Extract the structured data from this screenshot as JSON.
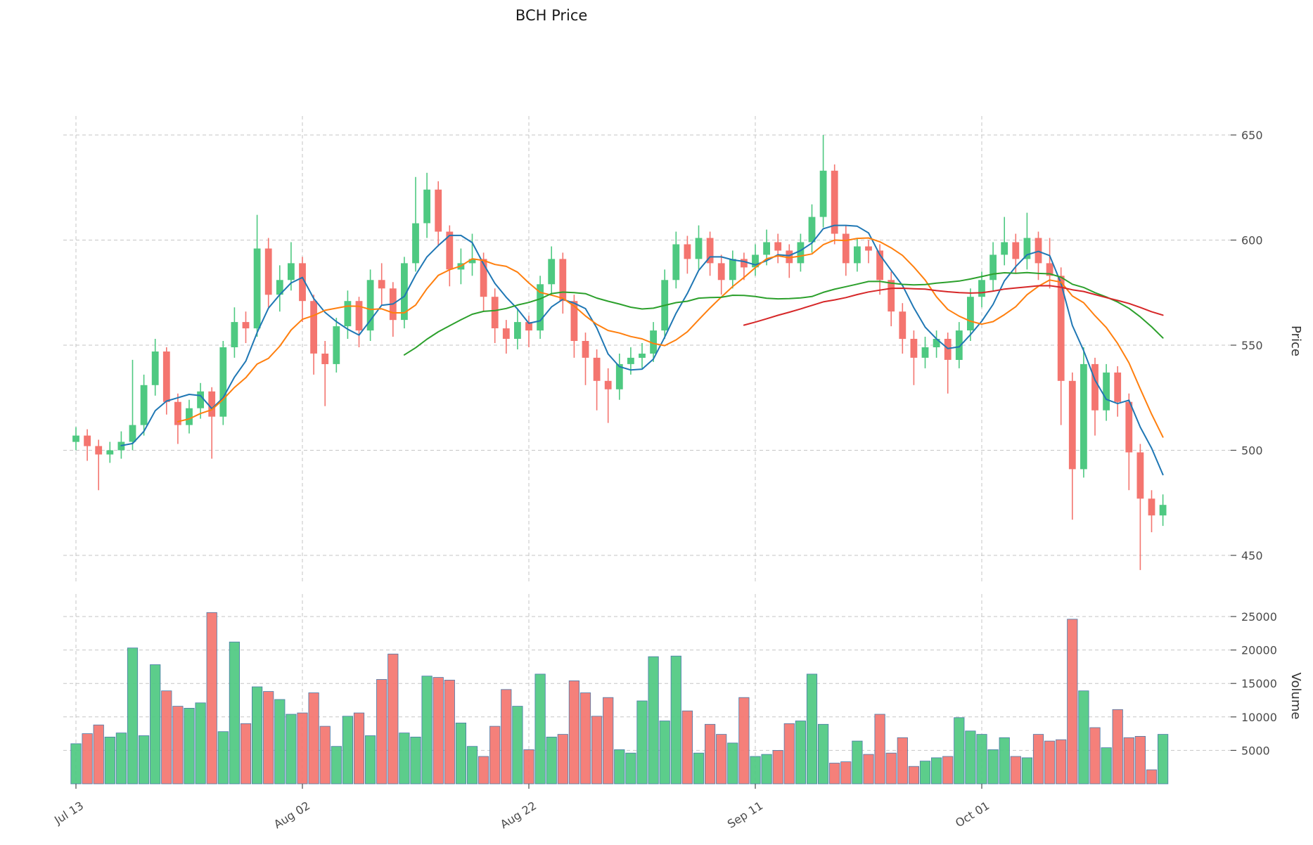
{
  "chart_data": {
    "type": "candlestick",
    "title": "BCH Price",
    "ylabel": "Price",
    "ylabel_volume": "Volume",
    "grid": true,
    "price_ticks": [
      450,
      500,
      550,
      600,
      650
    ],
    "price_range": [
      440,
      660
    ],
    "volume_ticks": [
      5000,
      10000,
      15000,
      20000,
      25000
    ],
    "volume_range": [
      0,
      27000
    ],
    "x_ticks": [
      {
        "index": 0,
        "label": "Jul 13"
      },
      {
        "index": 20,
        "label": "Aug 02"
      },
      {
        "index": 40,
        "label": "Aug 22"
      },
      {
        "index": 60,
        "label": "Sep 11"
      },
      {
        "index": 80,
        "label": "Oct 01"
      }
    ],
    "moving_averages": {
      "windows": [
        5,
        10,
        30,
        60
      ],
      "colors": [
        "#1f77b4",
        "#ff7f0e",
        "#2ca02c",
        "#d62728"
      ]
    },
    "colors": {
      "up": "#4ec981",
      "down": "#f4756f",
      "volume_edge": "#4a7aaa",
      "grid": "#c6c6c6",
      "text": "#4a4a4a"
    },
    "columns": [
      "date",
      "open",
      "high",
      "low",
      "close",
      "volume"
    ],
    "ohlcv": [
      [
        "Jul 13",
        504,
        511,
        500,
        507,
        6000
      ],
      [
        "Jul 14",
        507,
        510,
        495,
        502,
        7500
      ],
      [
        "Jul 15",
        502,
        505,
        481,
        498,
        8800
      ],
      [
        "Jul 16",
        498,
        504,
        494,
        500,
        7000
      ],
      [
        "Jul 17",
        500,
        509,
        496,
        504,
        7600
      ],
      [
        "Jul 18",
        504,
        543,
        500,
        512,
        20300
      ],
      [
        "Jul 19",
        512,
        536,
        507,
        531,
        7200
      ],
      [
        "Jul 20",
        531,
        553,
        526,
        547,
        17800
      ],
      [
        "Jul 21",
        547,
        549,
        517,
        523,
        13900
      ],
      [
        "Jul 22",
        523,
        527,
        503,
        512,
        11600
      ],
      [
        "Jul 23",
        512,
        524,
        508,
        520,
        11300
      ],
      [
        "Jul 24",
        520,
        532,
        515,
        528,
        12100
      ],
      [
        "Jul 25",
        528,
        530,
        496,
        516,
        25600
      ],
      [
        "Jul 26",
        516,
        552,
        512,
        549,
        7800
      ],
      [
        "Jul 27",
        549,
        568,
        544,
        561,
        21200
      ],
      [
        "Jul 28",
        561,
        566,
        551,
        558,
        9000
      ],
      [
        "Jul 29",
        558,
        612,
        554,
        596,
        14500
      ],
      [
        "Jul 30",
        596,
        601,
        568,
        574,
        13800
      ],
      [
        "Jul 31",
        574,
        588,
        566,
        581,
        12600
      ],
      [
        "Aug 01",
        581,
        599,
        576,
        589,
        10400
      ],
      [
        "Aug 02",
        589,
        592,
        561,
        571,
        10600
      ],
      [
        "Aug 03",
        571,
        574,
        536,
        546,
        13600
      ],
      [
        "Aug 04",
        546,
        552,
        521,
        541,
        8600
      ],
      [
        "Aug 05",
        541,
        563,
        537,
        559,
        5600
      ],
      [
        "Aug 06",
        559,
        576,
        553,
        571,
        10100
      ],
      [
        "Aug 07",
        571,
        573,
        549,
        557,
        10600
      ],
      [
        "Aug 08",
        557,
        586,
        552,
        581,
        7200
      ],
      [
        "Aug 09",
        581,
        589,
        569,
        577,
        15600
      ],
      [
        "Aug 10",
        577,
        580,
        554,
        562,
        19400
      ],
      [
        "Aug 11",
        562,
        592,
        558,
        589,
        7600
      ],
      [
        "Aug 12",
        589,
        630,
        585,
        608,
        7000
      ],
      [
        "Aug 13",
        608,
        632,
        601,
        624,
        16100
      ],
      [
        "Aug 14",
        624,
        628,
        597,
        604,
        15900
      ],
      [
        "Aug 15",
        604,
        607,
        578,
        586,
        15500
      ],
      [
        "Aug 16",
        586,
        596,
        579,
        589,
        9100
      ],
      [
        "Aug 17",
        589,
        603,
        583,
        591,
        5600
      ],
      [
        "Aug 18",
        591,
        594,
        566,
        573,
        4100
      ],
      [
        "Aug 19",
        573,
        577,
        551,
        558,
        8600
      ],
      [
        "Aug 20",
        558,
        562,
        546,
        553,
        14100
      ],
      [
        "Aug 21",
        553,
        567,
        548,
        561,
        11600
      ],
      [
        "Aug 22",
        561,
        564,
        549,
        557,
        5100
      ],
      [
        "Aug 23",
        557,
        583,
        553,
        579,
        16400
      ],
      [
        "Aug 24",
        579,
        597,
        574,
        591,
        7000
      ],
      [
        "Aug 25",
        591,
        594,
        565,
        571,
        7400
      ],
      [
        "Aug 26",
        571,
        574,
        544,
        552,
        15400
      ],
      [
        "Aug 27",
        552,
        556,
        531,
        544,
        13600
      ],
      [
        "Aug 28",
        544,
        548,
        519,
        533,
        10100
      ],
      [
        "Aug 29",
        533,
        539,
        513,
        529,
        12900
      ],
      [
        "Aug 30",
        529,
        546,
        524,
        541,
        5100
      ],
      [
        "Aug 31",
        541,
        549,
        536,
        544,
        4600
      ],
      [
        "Sep 01",
        544,
        551,
        539,
        546,
        12400
      ],
      [
        "Sep 02",
        546,
        561,
        542,
        557,
        19000
      ],
      [
        "Sep 03",
        557,
        586,
        553,
        581,
        9400
      ],
      [
        "Sep 04",
        581,
        604,
        577,
        598,
        19100
      ],
      [
        "Sep 05",
        598,
        602,
        584,
        591,
        10900
      ],
      [
        "Sep 06",
        591,
        607,
        586,
        601,
        4600
      ],
      [
        "Sep 07",
        601,
        604,
        583,
        589,
        8900
      ],
      [
        "Sep 08",
        589,
        593,
        574,
        581,
        7400
      ],
      [
        "Sep 09",
        581,
        595,
        577,
        591,
        6100
      ],
      [
        "Sep 10",
        591,
        594,
        581,
        587,
        12900
      ],
      [
        "Sep 11",
        587,
        598,
        583,
        593,
        4100
      ],
      [
        "Sep 12",
        593,
        605,
        588,
        599,
        4400
      ],
      [
        "Sep 13",
        599,
        603,
        589,
        595,
        5000
      ],
      [
        "Sep 14",
        595,
        598,
        582,
        589,
        9000
      ],
      [
        "Sep 15",
        589,
        603,
        585,
        599,
        9400
      ],
      [
        "Sep 16",
        599,
        617,
        594,
        611,
        16400
      ],
      [
        "Sep 17",
        611,
        650,
        606,
        633,
        8900
      ],
      [
        "Sep 18",
        633,
        636,
        598,
        603,
        3100
      ],
      [
        "Sep 19",
        603,
        607,
        583,
        589,
        3300
      ],
      [
        "Sep 20",
        589,
        601,
        585,
        597,
        6400
      ],
      [
        "Sep 21",
        597,
        600,
        589,
        595,
        4400
      ],
      [
        "Sep 22",
        595,
        598,
        574,
        581,
        10400
      ],
      [
        "Sep 23",
        581,
        585,
        559,
        566,
        4600
      ],
      [
        "Sep 24",
        566,
        570,
        546,
        553,
        6900
      ],
      [
        "Sep 25",
        553,
        557,
        531,
        544,
        2600
      ],
      [
        "Sep 26",
        544,
        554,
        539,
        549,
        3400
      ],
      [
        "Sep 27",
        549,
        557,
        544,
        553,
        3900
      ],
      [
        "Sep 28",
        553,
        556,
        527,
        543,
        4100
      ],
      [
        "Sep 29",
        543,
        561,
        539,
        557,
        9900
      ],
      [
        "Sep 30",
        557,
        577,
        552,
        573,
        7900
      ],
      [
        "Oct 01",
        573,
        585,
        568,
        581,
        7400
      ],
      [
        "Oct 02",
        581,
        599,
        576,
        593,
        5100
      ],
      [
        "Oct 03",
        593,
        611,
        588,
        599,
        6900
      ],
      [
        "Oct 04",
        599,
        603,
        584,
        591,
        4100
      ],
      [
        "Oct 05",
        591,
        613,
        586,
        601,
        3900
      ],
      [
        "Oct 06",
        601,
        604,
        581,
        589,
        7400
      ],
      [
        "Oct 07",
        589,
        601,
        577,
        583,
        6400
      ],
      [
        "Oct 08",
        583,
        587,
        512,
        533,
        6600
      ],
      [
        "Oct 09",
        533,
        537,
        467,
        491,
        24600
      ],
      [
        "Oct 10",
        491,
        549,
        487,
        541,
        13900
      ],
      [
        "Oct 11",
        541,
        544,
        507,
        519,
        8400
      ],
      [
        "Oct 12",
        519,
        541,
        514,
        537,
        5400
      ],
      [
        "Oct 13",
        537,
        540,
        516,
        523,
        11100
      ],
      [
        "Oct 14",
        523,
        527,
        481,
        499,
        6900
      ],
      [
        "Oct 15",
        499,
        503,
        443,
        477,
        7100
      ],
      [
        "Oct 16",
        477,
        481,
        461,
        469,
        2100
      ],
      [
        "Oct 17",
        469,
        479,
        464,
        474,
        7400
      ]
    ]
  }
}
